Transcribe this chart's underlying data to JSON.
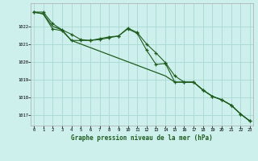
{
  "title": "Graphe pression niveau de la mer (hPa)",
  "background_color": "#cef0ec",
  "grid_color": "#aad8d4",
  "line_color": "#1e5c1e",
  "x_ticks": [
    0,
    1,
    2,
    3,
    4,
    5,
    6,
    7,
    8,
    9,
    10,
    11,
    12,
    13,
    14,
    15,
    16,
    17,
    18,
    19,
    20,
    21,
    22,
    23
  ],
  "y_ticks": [
    1017,
    1018,
    1019,
    1020,
    1021,
    1022
  ],
  "ylim": [
    1016.4,
    1023.3
  ],
  "xlim": [
    -0.3,
    23.3
  ],
  "line1_x": [
    0,
    1,
    2,
    3,
    4,
    5,
    6,
    7,
    8,
    9,
    10,
    11,
    12,
    13,
    14,
    15,
    16,
    17,
    18,
    19,
    20,
    21,
    22,
    23
  ],
  "line1_y": [
    1022.8,
    1022.8,
    1022.15,
    1021.8,
    1021.55,
    1021.25,
    1021.2,
    1021.3,
    1021.4,
    1021.45,
    1021.9,
    1021.65,
    1021.0,
    1020.5,
    1019.95,
    1019.2,
    1018.85,
    1018.85,
    1018.4,
    1018.05,
    1017.85,
    1017.55,
    1017.05,
    1016.65
  ],
  "line2_x": [
    0,
    1,
    2,
    3,
    4,
    5,
    6,
    7,
    8,
    9,
    10,
    11,
    12,
    13,
    14,
    15,
    16,
    17,
    18,
    19,
    20,
    21,
    22,
    23
  ],
  "line2_y": [
    1022.8,
    1022.7,
    1021.85,
    1021.75,
    1021.2,
    1021.2,
    1021.2,
    1021.25,
    1021.35,
    1021.45,
    1021.85,
    1021.6,
    1020.65,
    1019.85,
    1019.9,
    1018.85,
    1018.85,
    1018.85,
    1018.4,
    1018.05,
    1017.85,
    1017.55,
    1017.05,
    1016.65
  ],
  "line3_x": [
    0,
    1,
    2,
    3,
    4,
    5,
    6,
    7,
    8,
    9,
    10,
    11,
    12,
    13,
    14,
    15,
    16,
    17,
    18,
    19,
    20,
    21,
    22,
    23
  ],
  "line3_y": [
    1022.8,
    1022.7,
    1022.0,
    1021.8,
    1021.2,
    1021.0,
    1020.8,
    1020.6,
    1020.4,
    1020.2,
    1020.0,
    1019.8,
    1019.6,
    1019.4,
    1019.2,
    1018.85,
    1018.85,
    1018.85,
    1018.4,
    1018.05,
    1017.85,
    1017.55,
    1017.05,
    1016.65
  ]
}
